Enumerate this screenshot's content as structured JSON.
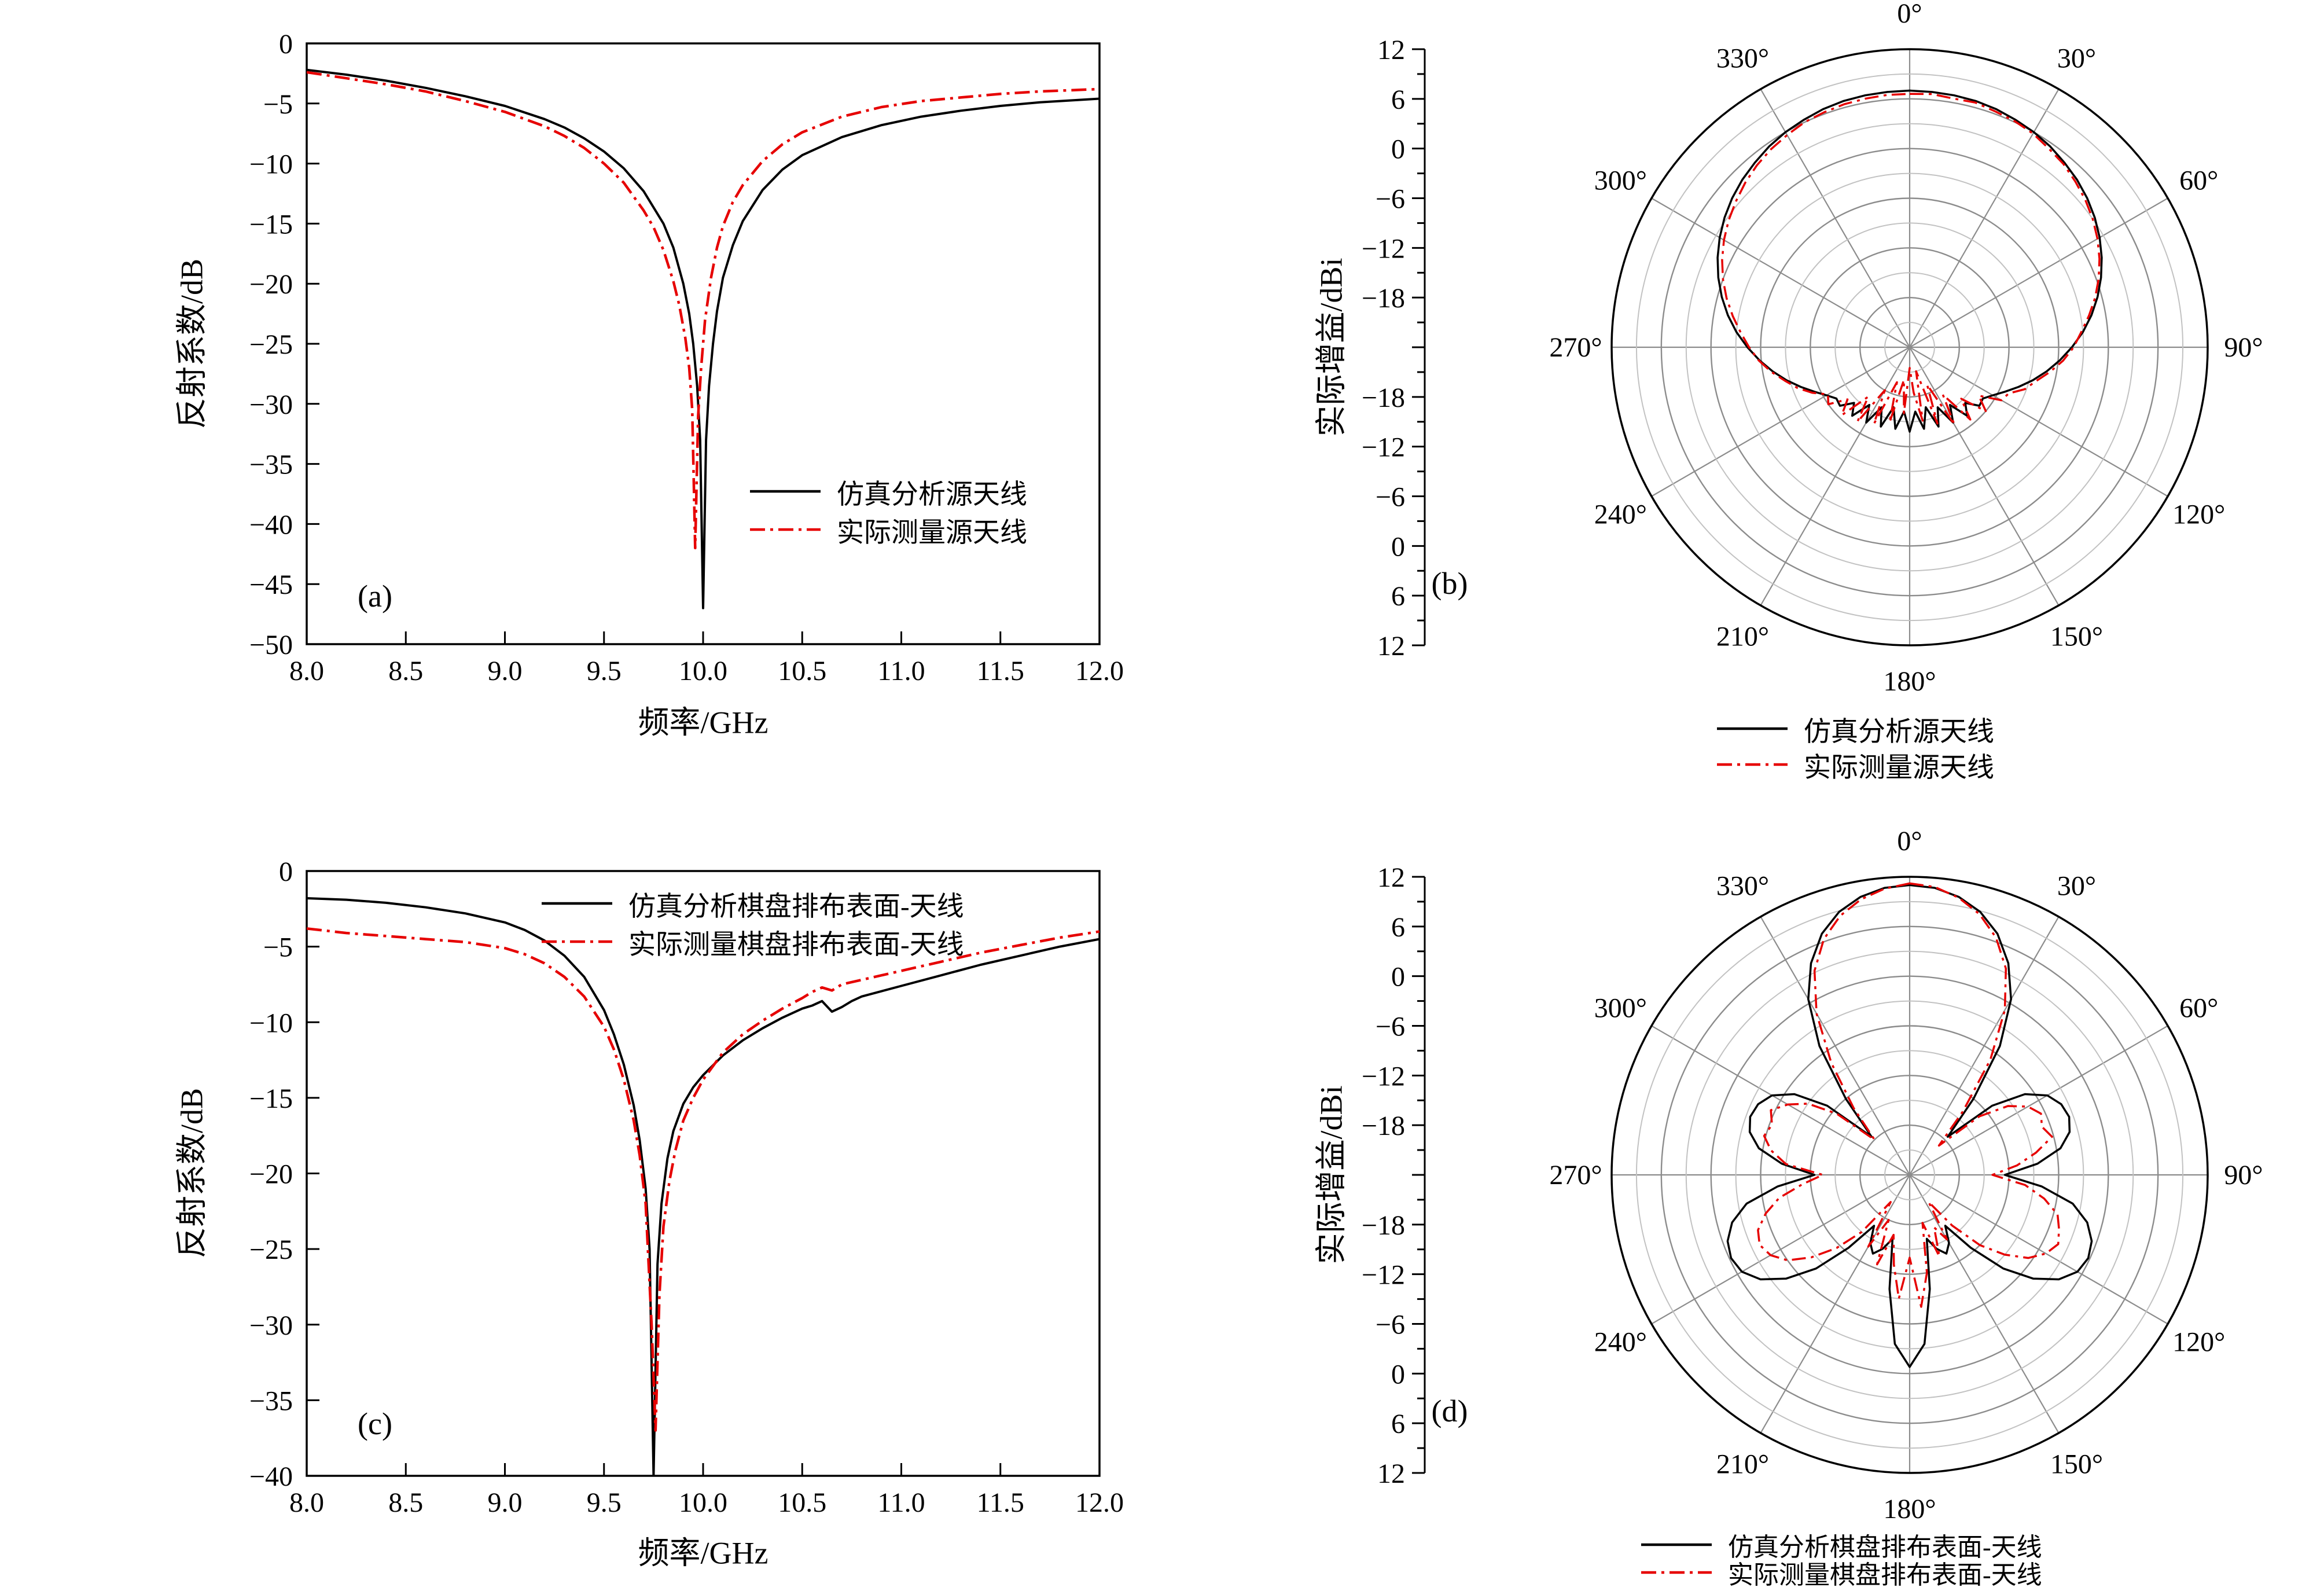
{
  "figure": {
    "background": "#ffffff",
    "colors": {
      "simulated": "#000000",
      "measured": "#e60000",
      "grid_major": "#8c8c8c",
      "grid_minor": "#c2c2c2"
    }
  },
  "chart_data": [
    {
      "id": "a",
      "type": "line",
      "panel_label": "(a)",
      "xlabel": "频率/GHz",
      "ylabel": "反射系数/dB",
      "xlim": [
        8,
        12
      ],
      "ylim": [
        -50,
        0
      ],
      "xticks": {
        "labels": [
          "8.0",
          "8.5",
          "9.0",
          "9.5",
          "10.0",
          "10.5",
          "11.0",
          "11.5",
          "12.0"
        ],
        "values": [
          8,
          8.5,
          9,
          9.5,
          10,
          10.5,
          11,
          11.5,
          12
        ]
      },
      "yticks": {
        "labels": [
          "0",
          "−5",
          "−10",
          "−15",
          "−20",
          "−25",
          "−30",
          "−35",
          "−40",
          "−45",
          "−50"
        ],
        "values": [
          0,
          -5,
          -10,
          -15,
          -20,
          -25,
          -30,
          -35,
          -40,
          -45,
          -50
        ]
      },
      "legend": [
        {
          "label": "仿真分析源天线",
          "color": "#000000",
          "dash": "solid"
        },
        {
          "label": "实际测量源天线",
          "color": "#e60000",
          "dash": "dashdot"
        }
      ],
      "series": [
        {
          "name": "仿真分析源天线",
          "color": "#000000",
          "dash": "solid",
          "x": [
            8.0,
            8.2,
            8.4,
            8.6,
            8.8,
            9.0,
            9.2,
            9.3,
            9.4,
            9.5,
            9.6,
            9.7,
            9.8,
            9.85,
            9.9,
            9.93,
            9.95,
            9.97,
            9.985,
            10.0,
            10.015,
            10.03,
            10.05,
            10.07,
            10.1,
            10.15,
            10.2,
            10.3,
            10.4,
            10.5,
            10.7,
            10.9,
            11.1,
            11.3,
            11.5,
            11.7,
            12.0
          ],
          "y": [
            -2.2,
            -2.6,
            -3.1,
            -3.7,
            -4.4,
            -5.2,
            -6.3,
            -7.0,
            -7.9,
            -9.0,
            -10.4,
            -12.3,
            -15.0,
            -17.0,
            -20.0,
            -22.5,
            -25.0,
            -28.5,
            -33.0,
            -47.0,
            -33.0,
            -28.5,
            -25.0,
            -22.3,
            -19.5,
            -16.8,
            -14.8,
            -12.2,
            -10.5,
            -9.3,
            -7.8,
            -6.8,
            -6.1,
            -5.6,
            -5.2,
            -4.9,
            -4.6
          ]
        },
        {
          "name": "实际测量源天线",
          "color": "#e60000",
          "dash": "dashdot",
          "x": [
            8.0,
            8.2,
            8.4,
            8.6,
            8.8,
            9.0,
            9.2,
            9.3,
            9.4,
            9.5,
            9.6,
            9.7,
            9.75,
            9.8,
            9.85,
            9.88,
            9.91,
            9.93,
            9.945,
            9.96,
            9.975,
            9.99,
            10.01,
            10.04,
            10.07,
            10.1,
            10.15,
            10.2,
            10.3,
            10.4,
            10.5,
            10.7,
            10.9,
            11.1,
            11.3,
            11.5,
            11.7,
            12.0
          ],
          "y": [
            -2.4,
            -2.9,
            -3.4,
            -4.0,
            -4.8,
            -5.7,
            -6.9,
            -7.7,
            -8.7,
            -10.0,
            -11.6,
            -13.9,
            -15.3,
            -17.2,
            -19.8,
            -21.8,
            -24.5,
            -27.0,
            -30.5,
            -42.0,
            -31.0,
            -27.0,
            -23.0,
            -19.5,
            -17.0,
            -15.2,
            -13.2,
            -11.8,
            -9.8,
            -8.4,
            -7.4,
            -6.1,
            -5.3,
            -4.8,
            -4.5,
            -4.2,
            -4.0,
            -3.8
          ]
        }
      ]
    },
    {
      "id": "b",
      "type": "polar",
      "panel_label": "(b)",
      "ylabel": "实际增益/dBi",
      "rlim": [
        -24,
        12
      ],
      "ring_step": 3,
      "major_step": 6,
      "r_axis": {
        "labels": [
          "12",
          "6",
          "0",
          "−6",
          "−12",
          "−18"
        ],
        "values": [
          12,
          6,
          0,
          -6,
          -12,
          -18
        ]
      },
      "angle_labels": [
        "0°",
        "30°",
        "60°",
        "90°",
        "120°",
        "150°",
        "180°",
        "210°",
        "240°",
        "270°",
        "300°",
        "330°"
      ],
      "angles": [
        0,
        5,
        10,
        15,
        20,
        25,
        30,
        35,
        40,
        45,
        50,
        55,
        60,
        65,
        70,
        75,
        80,
        85,
        90,
        95,
        100,
        105,
        110,
        115,
        120,
        125,
        130,
        135,
        140,
        145,
        150,
        155,
        160,
        165,
        170,
        175,
        180,
        185,
        190,
        195,
        200,
        205,
        210,
        215,
        220,
        225,
        230,
        235,
        240,
        245,
        250,
        255,
        260,
        265,
        270,
        275,
        280,
        285,
        290,
        295,
        300,
        305,
        310,
        315,
        320,
        325,
        330,
        335,
        340,
        345,
        350,
        355,
        360
      ],
      "legend": [
        {
          "label": "仿真分析源天线",
          "color": "#000000",
          "dash": "solid"
        },
        {
          "label": "实际测量源天线",
          "color": "#e60000",
          "dash": "dashdot"
        }
      ],
      "series": [
        {
          "name": "仿真分析源天线",
          "color": "#000000",
          "dash": "solid",
          "values": [
            7,
            6.95,
            6.9,
            6.8,
            6.6,
            6.3,
            6,
            5.6,
            5.1,
            4.6,
            4,
            3.3,
            2.5,
            1.6,
            0.6,
            -0.5,
            -1.7,
            -3,
            -4.4,
            -5.8,
            -7.2,
            -8.6,
            -10,
            -11.3,
            -12.4,
            -13.2,
            -13,
            -14.5,
            -13.2,
            -15.5,
            -13.5,
            -16,
            -13.8,
            -16.5,
            -14,
            -16.2,
            -13.8,
            -16.2,
            -14,
            -16.5,
            -13.8,
            -16,
            -13.5,
            -15.5,
            -13.2,
            -14.5,
            -13,
            -13.2,
            -12.4,
            -11.3,
            -10,
            -8.6,
            -7.2,
            -5.8,
            -4.4,
            -3,
            -1.7,
            -0.5,
            0.6,
            1.6,
            2.5,
            3.3,
            4,
            4.6,
            5.1,
            5.6,
            6,
            6.3,
            6.6,
            6.8,
            6.9,
            6.95,
            7
          ]
        },
        {
          "name": "实际测量源天线",
          "color": "#e60000",
          "dash": "dashdot",
          "values": [
            6.6,
            6.7,
            6.5,
            6.6,
            6.3,
            6.1,
            5.8,
            5.3,
            4.9,
            4.3,
            3.7,
            3,
            2.2,
            1.3,
            0.3,
            -0.8,
            -2,
            -3.2,
            -4.2,
            -5.4,
            -6.8,
            -8.2,
            -9.2,
            -10.8,
            -11.2,
            -13.8,
            -12,
            -15.2,
            -12.6,
            -17,
            -13.2,
            -19,
            -14.2,
            -21,
            -15,
            -18.5,
            -21.5,
            -16,
            -20,
            -14.6,
            -19.5,
            -13.8,
            -18,
            -13,
            -16.2,
            -12.4,
            -14.2,
            -12,
            -12.6,
            -11,
            -9.6,
            -8.4,
            -7,
            -5.7,
            -4.6,
            -3.5,
            -2.3,
            -1.1,
            0,
            1,
            1.9,
            2.7,
            3.4,
            4.1,
            4.7,
            5.2,
            5.6,
            6,
            6.2,
            6.4,
            6.5,
            6.6,
            6.6
          ]
        }
      ]
    },
    {
      "id": "c",
      "type": "line",
      "panel_label": "(c)",
      "xlabel": "频率/GHz",
      "ylabel": "反射系数/dB",
      "xlim": [
        8,
        12
      ],
      "ylim": [
        -40,
        0
      ],
      "xticks": {
        "labels": [
          "8.0",
          "8.5",
          "9.0",
          "9.5",
          "10.0",
          "10.5",
          "11.0",
          "11.5",
          "12.0"
        ],
        "values": [
          8,
          8.5,
          9,
          9.5,
          10,
          10.5,
          11,
          11.5,
          12
        ]
      },
      "yticks": {
        "labels": [
          "0",
          "−5",
          "−10",
          "−15",
          "−20",
          "−25",
          "−30",
          "−35",
          "−40"
        ],
        "values": [
          0,
          -5,
          -10,
          -15,
          -20,
          -25,
          -30,
          -35,
          -40
        ]
      },
      "legend": [
        {
          "label": "仿真分析棋盘排布表面-天线",
          "color": "#000000",
          "dash": "solid"
        },
        {
          "label": "实际测量棋盘排布表面-天线",
          "color": "#e60000",
          "dash": "dashdot"
        }
      ],
      "series": [
        {
          "name": "仿真分析棋盘排布表面-天线",
          "color": "#000000",
          "dash": "solid",
          "x": [
            8.0,
            8.2,
            8.4,
            8.6,
            8.8,
            9.0,
            9.1,
            9.2,
            9.3,
            9.4,
            9.5,
            9.55,
            9.6,
            9.65,
            9.68,
            9.71,
            9.73,
            9.75,
            9.77,
            9.79,
            9.82,
            9.85,
            9.9,
            9.95,
            10.0,
            10.1,
            10.2,
            10.3,
            10.4,
            10.5,
            10.55,
            10.6,
            10.65,
            10.7,
            10.75,
            10.8,
            11.0,
            11.2,
            11.4,
            11.6,
            11.8,
            12.0
          ],
          "y": [
            -1.8,
            -1.9,
            -2.1,
            -2.4,
            -2.8,
            -3.4,
            -3.9,
            -4.6,
            -5.6,
            -7.0,
            -9.2,
            -10.8,
            -12.8,
            -15.5,
            -17.8,
            -21.0,
            -25.0,
            -40.0,
            -26.0,
            -22.0,
            -19.0,
            -17.2,
            -15.4,
            -14.3,
            -13.5,
            -12.2,
            -11.2,
            -10.4,
            -9.7,
            -9.1,
            -8.9,
            -8.6,
            -9.3,
            -9.0,
            -8.6,
            -8.3,
            -7.6,
            -6.9,
            -6.2,
            -5.6,
            -5.0,
            -4.5
          ]
        },
        {
          "name": "实际测量棋盘排布表面-天线",
          "color": "#e60000",
          "dash": "dashdot",
          "x": [
            8.0,
            8.2,
            8.4,
            8.6,
            8.8,
            9.0,
            9.1,
            9.2,
            9.3,
            9.4,
            9.5,
            9.55,
            9.6,
            9.65,
            9.68,
            9.71,
            9.74,
            9.76,
            9.78,
            9.8,
            9.83,
            9.86,
            9.9,
            9.95,
            10.0,
            10.1,
            10.2,
            10.3,
            10.4,
            10.5,
            10.55,
            10.6,
            10.65,
            10.7,
            10.8,
            11.0,
            11.2,
            11.4,
            11.6,
            11.8,
            12.0
          ],
          "y": [
            -3.8,
            -4.1,
            -4.3,
            -4.5,
            -4.7,
            -5.1,
            -5.5,
            -6.1,
            -7.0,
            -8.3,
            -10.3,
            -11.8,
            -13.8,
            -16.5,
            -18.8,
            -22.0,
            -30.0,
            -37.0,
            -28.0,
            -23.5,
            -20.5,
            -18.5,
            -16.5,
            -15.0,
            -13.8,
            -12.0,
            -10.8,
            -9.9,
            -9.1,
            -8.4,
            -8.0,
            -7.7,
            -7.9,
            -7.5,
            -7.2,
            -6.6,
            -6.0,
            -5.4,
            -4.9,
            -4.4,
            -4.0
          ]
        }
      ]
    },
    {
      "id": "d",
      "type": "polar",
      "panel_label": "(d)",
      "ylabel": "实际增益/dBi",
      "rlim": [
        -24,
        12
      ],
      "ring_step": 3,
      "major_step": 6,
      "r_axis": {
        "labels": [
          "12",
          "6",
          "0",
          "−6",
          "−12",
          "−18"
        ],
        "values": [
          12,
          6,
          0,
          -6,
          -12,
          -18
        ]
      },
      "angle_labels": [
        "0°",
        "30°",
        "60°",
        "90°",
        "120°",
        "150°",
        "180°",
        "210°",
        "240°",
        "270°",
        "300°",
        "330°"
      ],
      "angles": [
        0,
        5,
        10,
        15,
        20,
        25,
        30,
        35,
        40,
        45,
        50,
        55,
        60,
        65,
        70,
        75,
        80,
        85,
        90,
        95,
        100,
        105,
        110,
        115,
        120,
        125,
        130,
        135,
        140,
        145,
        150,
        155,
        160,
        165,
        170,
        175,
        180,
        185,
        190,
        195,
        200,
        205,
        210,
        215,
        220,
        225,
        230,
        235,
        240,
        245,
        250,
        255,
        260,
        265,
        270,
        275,
        280,
        285,
        290,
        295,
        300,
        305,
        310,
        315,
        320,
        325,
        330,
        335,
        340,
        345,
        350,
        355,
        360
      ],
      "legend": [
        {
          "label": "仿真分析棋盘排布表面-天线",
          "color": "#000000",
          "dash": "solid"
        },
        {
          "label": "实际测量棋盘排布表面-天线",
          "color": "#e60000",
          "dash": "dashdot"
        }
      ],
      "series": [
        {
          "name": "仿真分析棋盘排布表面-天线",
          "color": "#000000",
          "dash": "solid",
          "values": [
            11,
            10.8,
            10.1,
            8.9,
            7,
            4.2,
            0.5,
            -5,
            -12,
            -17.5,
            -11,
            -7,
            -4.8,
            -3.8,
            -3.5,
            -4,
            -5.5,
            -8.5,
            -12.5,
            -8,
            -4,
            -1.8,
            -0.6,
            -0.2,
            -0.6,
            -2,
            -4.5,
            -8,
            -12.5,
            -16.5,
            -14.5,
            -13.5,
            -14.5,
            -16,
            -10,
            -3.5,
            -0.8,
            -3.5,
            -10,
            -16,
            -14.5,
            -13.5,
            -14.5,
            -16.5,
            -12.5,
            -8,
            -4.5,
            -2,
            -0.6,
            -0.2,
            -0.6,
            -1.8,
            -4,
            -8,
            -12.5,
            -8.5,
            -5.5,
            -4,
            -3.5,
            -3.8,
            -4.8,
            -7,
            -11,
            -17.5,
            -12,
            -5,
            0.5,
            4.2,
            7,
            8.9,
            10.1,
            10.8,
            11
          ]
        },
        {
          "name": "实际测量棋盘排布表面-天线",
          "color": "#e60000",
          "dash": "dashdot",
          "values": [
            11.2,
            10.9,
            10,
            8.6,
            6.5,
            3.5,
            -1,
            -7,
            -14,
            -19,
            -13,
            -9.5,
            -7.5,
            -6.5,
            -7,
            -6.2,
            -8.5,
            -11,
            -14,
            -10,
            -7.5,
            -5.5,
            -4.8,
            -4.2,
            -5,
            -6.5,
            -9,
            -12,
            -16,
            -20,
            -15,
            -17,
            -13.5,
            -18,
            -12,
            -8,
            -14,
            -9,
            -13,
            -16.5,
            -12.5,
            -18,
            -14,
            -20,
            -15,
            -11.5,
            -8.5,
            -6,
            -4.6,
            -4,
            -4.5,
            -6,
            -8,
            -11,
            -13.5,
            -9,
            -7,
            -5.8,
            -6.3,
            -5.5,
            -7,
            -9,
            -12.5,
            -18,
            -13.5,
            -7.5,
            -1.5,
            3.2,
            6.3,
            8.4,
            9.8,
            10.7,
            11.2
          ]
        }
      ]
    }
  ]
}
